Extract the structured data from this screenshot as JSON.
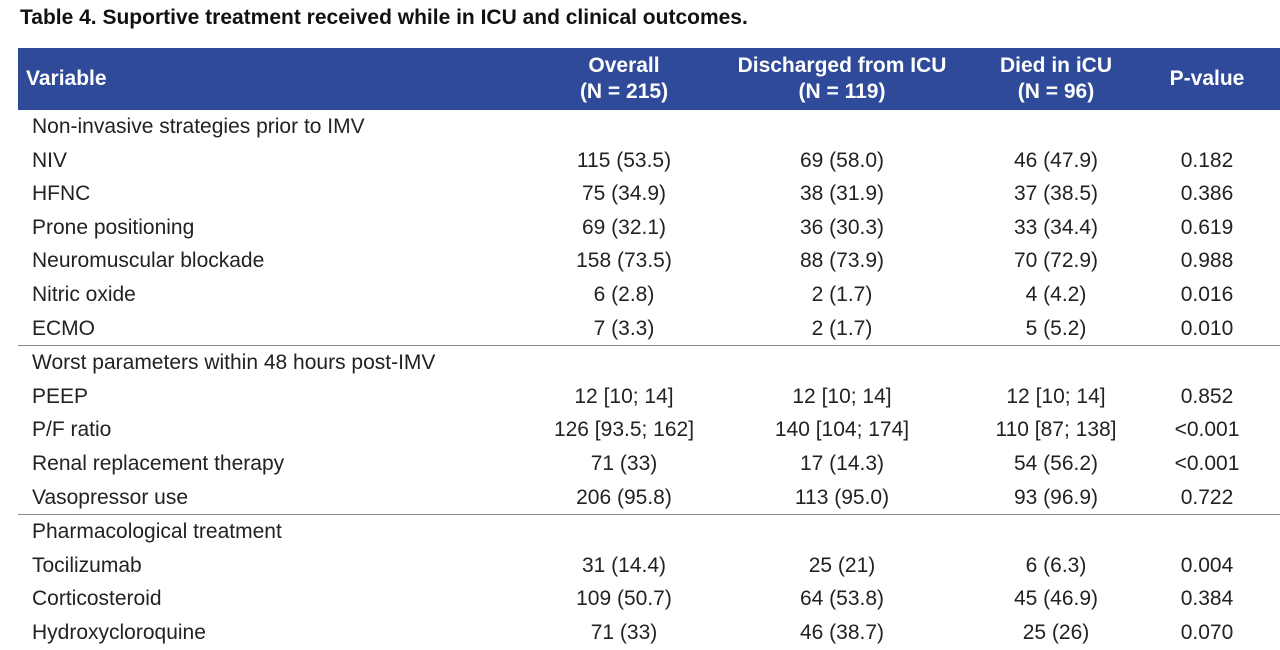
{
  "caption": "Table 4. Suportive treatment received while in ICU and clinical outcomes.",
  "header": {
    "variable": "Variable",
    "overall_line1": "Overall",
    "overall_line2": "(N = 215)",
    "discharged_line1": "Discharged from ICU",
    "discharged_line2": "(N = 119)",
    "died_line1": "Died in iCU",
    "died_line2": "(N = 96)",
    "pvalue": "P-value"
  },
  "sections": [
    {
      "title": "Non-invasive strategies prior to IMV",
      "rows": [
        {
          "label": "NIV",
          "overall": "115 (53.5)",
          "discharged": "69 (58.0)",
          "died": "46 (47.9)",
          "p": "0.182"
        },
        {
          "label": "HFNC",
          "overall": "75 (34.9)",
          "discharged": "38 (31.9)",
          "died": "37 (38.5)",
          "p": "0.386"
        },
        {
          "label": "Prone positioning",
          "overall": "69 (32.1)",
          "discharged": "36 (30.3)",
          "died": "33 (34.4)",
          "p": "0.619"
        },
        {
          "label": "Neuromuscular blockade",
          "overall": "158 (73.5)",
          "discharged": "88 (73.9)",
          "died": "70 (72.9)",
          "p": "0.988"
        },
        {
          "label": "Nitric oxide",
          "overall": "6 (2.8)",
          "discharged": "2 (1.7)",
          "died": "4 (4.2)",
          "p": "0.016"
        },
        {
          "label": "ECMO",
          "overall": "7 (3.3)",
          "discharged": "2 (1.7)",
          "died": "5 (5.2)",
          "p": "0.010"
        }
      ]
    },
    {
      "title": "Worst parameters within 48 hours post-IMV",
      "rows": [
        {
          "label": "PEEP",
          "overall": "12 [10; 14]",
          "discharged": "12 [10; 14]",
          "died": "12 [10; 14]",
          "p": "0.852"
        },
        {
          "label": "P/F ratio",
          "overall": "126 [93.5; 162]",
          "discharged": "140 [104; 174]",
          "died": "110 [87; 138]",
          "p": "<0.001"
        },
        {
          "label": "Renal replacement therapy",
          "overall": "71 (33)",
          "discharged": "17 (14.3)",
          "died": "54 (56.2)",
          "p": "<0.001"
        },
        {
          "label": "Vasopressor use",
          "overall": "206 (95.8)",
          "discharged": "113 (95.0)",
          "died": "93 (96.9)",
          "p": "0.722"
        }
      ]
    },
    {
      "title": "Pharmacological treatment",
      "rows": [
        {
          "label": "Tocilizumab",
          "overall": "31 (14.4)",
          "discharged": "25 (21)",
          "died": "6 (6.3)",
          "p": "0.004"
        },
        {
          "label": "Corticosteroid",
          "overall": "109 (50.7)",
          "discharged": "64 (53.8)",
          "died": "45 (46.9)",
          "p": "0.384"
        },
        {
          "label": "Hydroxycloroquine",
          "overall": "71 (33)",
          "discharged": "46 (38.7)",
          "died": "25 (26)",
          "p": "0.070"
        }
      ]
    }
  ]
}
